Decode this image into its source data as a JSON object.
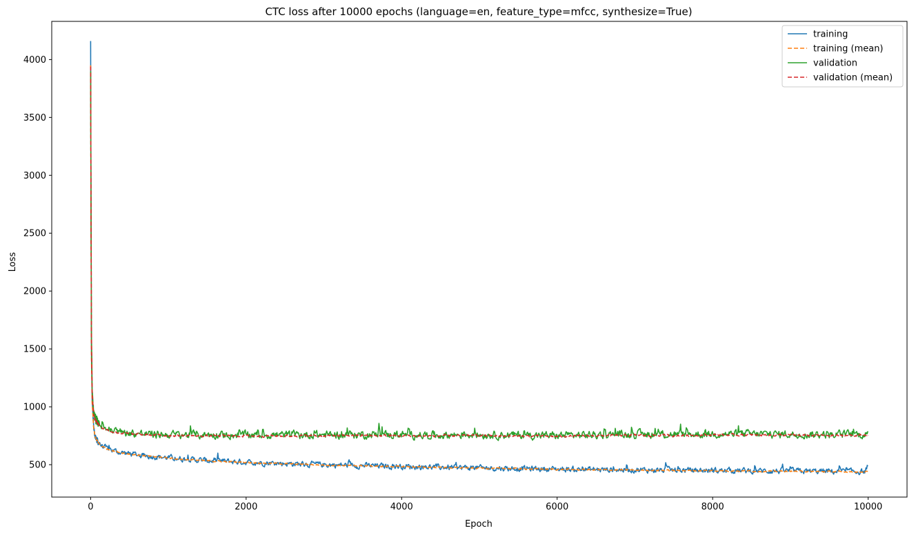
{
  "chart_data": {
    "type": "line",
    "title": "CTC loss after 10000 epochs (language=en, feature_type=mfcc, synthesize=True)",
    "xlabel": "Epoch",
    "ylabel": "Loss",
    "xlim": [
      -500,
      10500
    ],
    "ylim": [
      220,
      4330
    ],
    "xticks": [
      0,
      2000,
      4000,
      6000,
      8000,
      10000
    ],
    "yticks": [
      500,
      1000,
      1500,
      2000,
      2500,
      3000,
      3500,
      4000
    ],
    "grid": false,
    "legend_position": "top-right",
    "series": [
      {
        "name": "training",
        "color": "#1f77b4",
        "style": "solid",
        "x": [
          0,
          10,
          20,
          40,
          60,
          100,
          150,
          200,
          300,
          400,
          500,
          600,
          700,
          800,
          1000,
          1200,
          1500,
          2000,
          2500,
          3000,
          3500,
          4000,
          4500,
          5000,
          5500,
          6000,
          6500,
          7000,
          7500,
          8000,
          8500,
          9000,
          9500,
          10000
        ],
        "values": [
          4160,
          1500,
          1050,
          820,
          740,
          690,
          660,
          640,
          620,
          605,
          595,
          585,
          578,
          572,
          560,
          548,
          535,
          522,
          510,
          500,
          492,
          485,
          478,
          472,
          467,
          462,
          458,
          455,
          452,
          450,
          447,
          445,
          442,
          440
        ],
        "noise": 40
      },
      {
        "name": "training (mean)",
        "color": "#ff7f0e",
        "style": "dashed",
        "x": [
          0,
          10,
          20,
          40,
          60,
          100,
          150,
          200,
          300,
          400,
          500,
          600,
          700,
          800,
          1000,
          1200,
          1500,
          2000,
          2500,
          3000,
          3500,
          4000,
          4500,
          5000,
          5500,
          6000,
          6500,
          7000,
          7500,
          8000,
          8500,
          9000,
          9500,
          10000
        ],
        "values": [
          3950,
          1450,
          1030,
          810,
          735,
          688,
          658,
          638,
          618,
          603,
          593,
          583,
          576,
          570,
          558,
          546,
          533,
          520,
          508,
          498,
          490,
          483,
          476,
          470,
          465,
          460,
          456,
          453,
          450,
          448,
          445,
          443,
          440,
          438
        ],
        "noise": 10
      },
      {
        "name": "validation",
        "color": "#2ca02c",
        "style": "solid",
        "x": [
          0,
          10,
          20,
          40,
          60,
          100,
          150,
          200,
          300,
          400,
          500,
          600,
          700,
          800,
          1000,
          1500,
          2000,
          2500,
          3000,
          3500,
          4000,
          4500,
          5000,
          5500,
          6000,
          6500,
          7000,
          7500,
          8000,
          8500,
          9000,
          9500,
          10000
        ],
        "values": [
          3900,
          1700,
          1150,
          950,
          900,
          860,
          830,
          810,
          790,
          780,
          775,
          770,
          765,
          762,
          760,
          758,
          756,
          757,
          758,
          760,
          758,
          756,
          760,
          755,
          752,
          758,
          762,
          760,
          765,
          765,
          763,
          760,
          762
        ],
        "noise": 55
      },
      {
        "name": "validation (mean)",
        "color": "#d62728",
        "style": "dashed",
        "x": [
          0,
          10,
          20,
          40,
          60,
          100,
          150,
          200,
          300,
          400,
          500,
          600,
          700,
          800,
          1000,
          1500,
          2000,
          2500,
          3000,
          3500,
          4000,
          4500,
          5000,
          5500,
          6000,
          6500,
          7000,
          7500,
          8000,
          8500,
          9000,
          9500,
          10000
        ],
        "values": [
          3940,
          1650,
          1120,
          930,
          885,
          850,
          820,
          800,
          782,
          772,
          767,
          762,
          758,
          755,
          752,
          750,
          748,
          749,
          750,
          752,
          750,
          748,
          752,
          747,
          745,
          750,
          754,
          752,
          757,
          757,
          755,
          752,
          754
        ],
        "noise": 15
      }
    ]
  }
}
